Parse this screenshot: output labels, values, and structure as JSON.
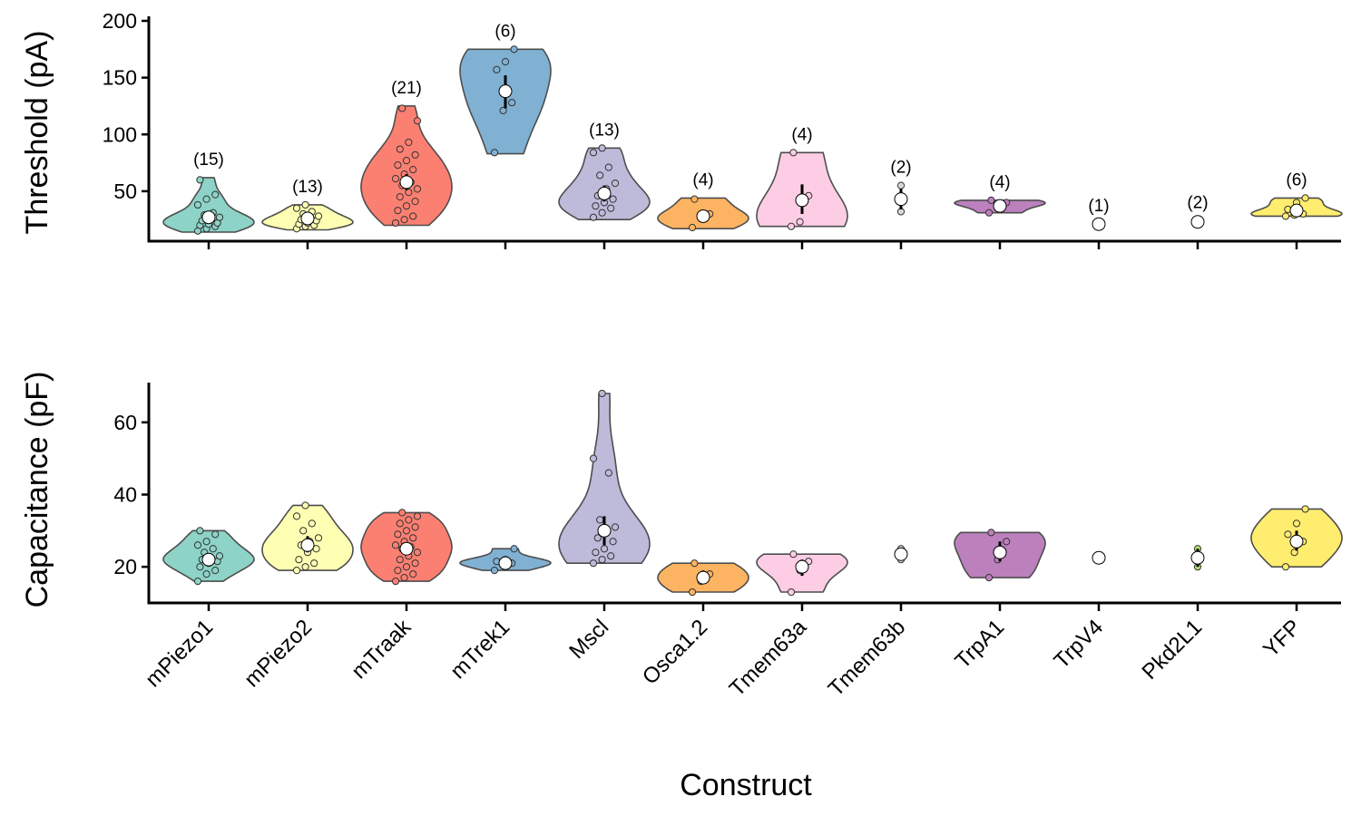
{
  "figure": {
    "xlabel": "Construct",
    "categories": [
      "mPiezo1",
      "mPiezo2",
      "mTraak",
      "mTrek1",
      "Mscl",
      "Osca1.2",
      "Tmem63a",
      "Tmem63b",
      "TrpA1",
      "TrpV4",
      "Pkd2L1",
      "YFP"
    ],
    "colors": {
      "mPiezo1": "#8DD3C7",
      "mPiezo2": "#FFFFB3",
      "mTraak": "#FB8072",
      "mTrek1": "#80B1D3",
      "Mscl": "#BEBADA",
      "Osca1.2": "#FDB462",
      "Tmem63a": "#FCCDE5",
      "Tmem63b": "#D9D9D9",
      "TrpA1": "#BC80BD",
      "TrpV4": "#CCEBC5",
      "Pkd2L1": "#B3DE69",
      "YFP": "#FFED6F"
    }
  },
  "chart_data": [
    {
      "type": "violin",
      "panel": "top",
      "ylabel": "Threshold (pA)",
      "ylim": [
        6,
        204
      ],
      "yticks": [
        50,
        100,
        150,
        200
      ],
      "grid": false,
      "series": [
        {
          "name": "mPiezo1",
          "n_label": "(15)",
          "mean": 27,
          "se": [
            24,
            30
          ],
          "vmin": 14,
          "vmax": 62,
          "points": [
            15,
            17,
            19,
            20,
            21,
            22,
            24,
            25,
            27,
            29,
            31,
            38,
            43,
            47,
            60
          ]
        },
        {
          "name": "mPiezo2",
          "n_label": "(13)",
          "mean": 26,
          "se": [
            24,
            28
          ],
          "vmin": 16,
          "vmax": 38,
          "points": [
            17,
            19,
            20,
            21,
            22,
            24,
            25,
            26,
            28,
            30,
            32,
            35,
            38
          ]
        },
        {
          "name": "mTraak",
          "n_label": "(21)",
          "mean": 58,
          "se": [
            51,
            65
          ],
          "vmin": 20,
          "vmax": 125,
          "points": [
            22,
            25,
            28,
            33,
            37,
            41,
            45,
            49,
            52,
            55,
            58,
            61,
            65,
            69,
            73,
            77,
            82,
            87,
            93,
            112,
            123
          ]
        },
        {
          "name": "mTrek1",
          "n_label": "(6)",
          "mean": 138,
          "se": [
            123,
            152
          ],
          "vmin": 83,
          "vmax": 175,
          "points": [
            84,
            121,
            128,
            157,
            164,
            175
          ]
        },
        {
          "name": "Mscl",
          "n_label": "(13)",
          "mean": 48,
          "se": [
            41,
            55
          ],
          "vmin": 25,
          "vmax": 88,
          "points": [
            27,
            31,
            35,
            37,
            40,
            43,
            46,
            52,
            57,
            64,
            71,
            84,
            88
          ]
        },
        {
          "name": "Osca1.2",
          "n_label": "(4)",
          "mean": 28,
          "se": [
            24,
            33
          ],
          "vmin": 17,
          "vmax": 44,
          "points": [
            18,
            26,
            30,
            43
          ]
        },
        {
          "name": "Tmem63a",
          "n_label": "(4)",
          "mean": 42,
          "se": [
            30,
            56
          ],
          "vmin": 19,
          "vmax": 84,
          "points": [
            19,
            23,
            46,
            84
          ]
        },
        {
          "name": "Tmem63b",
          "n_label": "(2)",
          "mean": 43,
          "se": [
            34,
            52
          ],
          "vmin": 32,
          "vmax": 55,
          "points": [
            32,
            55
          ]
        },
        {
          "name": "TrpA1",
          "n_label": "(4)",
          "mean": 37,
          "se": [
            34,
            40
          ],
          "vmin": 31,
          "vmax": 42,
          "points": [
            31,
            37,
            40,
            42
          ]
        },
        {
          "name": "TrpV4",
          "n_label": "(1)",
          "mean": 21,
          "se": [
            21,
            21
          ],
          "vmin": 21,
          "vmax": 21,
          "points": [
            21
          ]
        },
        {
          "name": "Pkd2L1",
          "n_label": "(2)",
          "mean": 23,
          "se": [
            22,
            24
          ],
          "vmin": 22,
          "vmax": 24,
          "points": [
            22,
            24
          ]
        },
        {
          "name": "YFP",
          "n_label": "(6)",
          "mean": 33,
          "se": [
            30,
            37
          ],
          "vmin": 28,
          "vmax": 44,
          "points": [
            28,
            29,
            30,
            34,
            40,
            44
          ]
        }
      ]
    },
    {
      "type": "violin",
      "panel": "bottom",
      "ylabel": "Capacitance (pF)",
      "ylim": [
        10,
        71
      ],
      "yticks": [
        20,
        40,
        60
      ],
      "grid": false,
      "series": [
        {
          "name": "mPiezo1",
          "mean": 22,
          "se": [
            21,
            23.5
          ],
          "vmin": 16,
          "vmax": 30,
          "points": [
            16,
            18,
            19,
            20,
            21,
            21.5,
            22,
            22.5,
            23,
            24,
            25,
            26,
            27,
            29,
            30
          ]
        },
        {
          "name": "mPiezo2",
          "mean": 26,
          "se": [
            24,
            28.5
          ],
          "vmin": 19,
          "vmax": 37,
          "points": [
            19,
            20,
            21,
            22,
            24,
            25,
            26,
            27,
            28,
            30,
            32,
            34,
            37
          ]
        },
        {
          "name": "mTraak",
          "mean": 25,
          "se": [
            23.5,
            26.5
          ],
          "vmin": 16,
          "vmax": 35,
          "points": [
            16,
            17,
            18,
            19,
            20,
            21,
            22,
            23,
            24,
            25,
            25.5,
            26,
            27,
            28,
            29,
            30,
            31,
            32,
            33,
            34,
            35
          ]
        },
        {
          "name": "mTrek1",
          "mean": 21,
          "se": [
            20.5,
            22
          ],
          "vmin": 19,
          "vmax": 25,
          "points": [
            19,
            20.5,
            21,
            21.5,
            22,
            25
          ]
        },
        {
          "name": "Mscl",
          "mean": 30,
          "se": [
            26,
            34
          ],
          "vmin": 21,
          "vmax": 68,
          "points": [
            21,
            22,
            23,
            24,
            25,
            27,
            28,
            30,
            31,
            33,
            46,
            50,
            68
          ]
        },
        {
          "name": "Osca1.2",
          "mean": 17,
          "se": [
            15.5,
            19
          ],
          "vmin": 13,
          "vmax": 21,
          "points": [
            13,
            16,
            18,
            21
          ]
        },
        {
          "name": "Tmem63a",
          "mean": 20,
          "se": [
            17.5,
            22
          ],
          "vmin": 13,
          "vmax": 23.5,
          "points": [
            13,
            19,
            21.5,
            23.5
          ]
        },
        {
          "name": "Tmem63b",
          "mean": 23.5,
          "se": [
            22,
            25
          ],
          "vmin": 22,
          "vmax": 25,
          "points": [
            22,
            25
          ]
        },
        {
          "name": "TrpA1",
          "mean": 24,
          "se": [
            21.5,
            27
          ],
          "vmin": 17,
          "vmax": 29.5,
          "points": [
            17,
            22,
            27,
            29.5
          ]
        },
        {
          "name": "TrpV4",
          "mean": 22.5,
          "se": [
            22.5,
            22.5
          ],
          "vmin": 22.5,
          "vmax": 22.5,
          "points": [
            22.5
          ]
        },
        {
          "name": "Pkd2L1",
          "mean": 22.5,
          "se": [
            20,
            25
          ],
          "vmin": 20,
          "vmax": 25,
          "points": [
            20,
            25
          ]
        },
        {
          "name": "YFP",
          "mean": 27,
          "se": [
            24.5,
            30
          ],
          "vmin": 20,
          "vmax": 36,
          "points": [
            20,
            24,
            27,
            29,
            32,
            36
          ]
        }
      ]
    }
  ]
}
